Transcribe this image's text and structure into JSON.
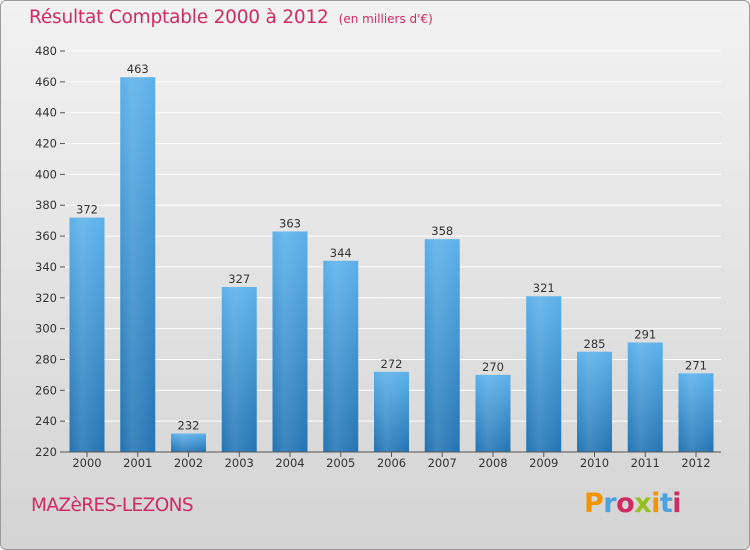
{
  "title": {
    "main": "Résultat Comptable 2000 à 2012",
    "unit": "(en milliers d'€)"
  },
  "city": "MAZèRES-LEZONS",
  "logo": {
    "text": "Proxiti",
    "letter_colors": [
      "#f29400",
      "#4aa3df",
      "#d02a65",
      "#96c11f",
      "#f29400",
      "#4aa3df",
      "#d02a65"
    ]
  },
  "colors": {
    "bar_light": "#5cb1ea",
    "bar_dark": "#2374b4",
    "title": "#d02a65",
    "grid": "#ffffff"
  },
  "chart_data": {
    "type": "bar",
    "title": "Résultat Comptable 2000 à 2012",
    "xlabel": "",
    "ylabel": "",
    "ylim": [
      220,
      480
    ],
    "yticks": [
      220,
      240,
      260,
      280,
      300,
      320,
      340,
      360,
      380,
      400,
      420,
      440,
      460,
      480
    ],
    "grid": true,
    "categories": [
      "2000",
      "2001",
      "2002",
      "2003",
      "2004",
      "2005",
      "2006",
      "2007",
      "2008",
      "2009",
      "2010",
      "2011",
      "2012"
    ],
    "values": [
      372,
      463,
      232,
      327,
      363,
      344,
      272,
      358,
      270,
      321,
      285,
      291,
      271
    ]
  }
}
